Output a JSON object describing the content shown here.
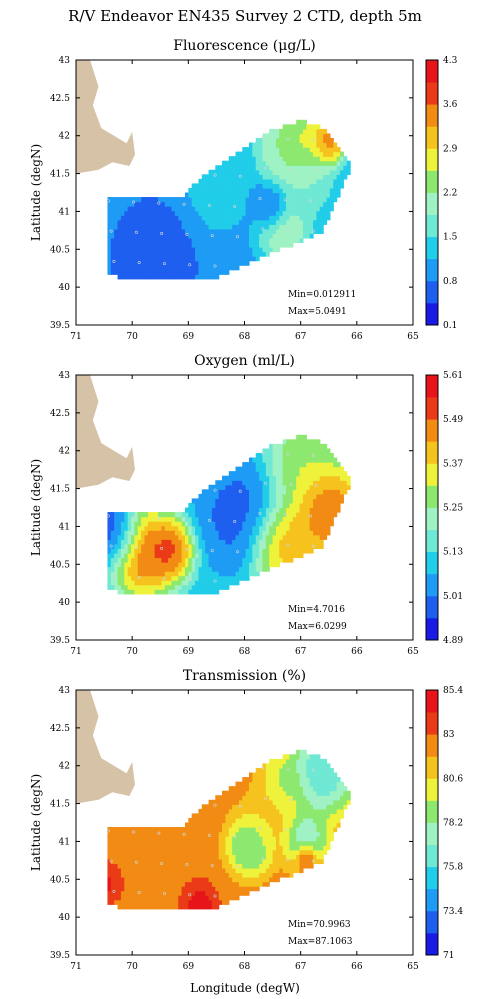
{
  "figure_title": "R/V Endeavor EN435 Survey 2 CTD, depth 5m",
  "xlabel": "Longitude (degW)",
  "ylabel": "Latitude (degN)",
  "colors": {
    "land": "#d6c2a6",
    "colormap": [
      "#1a1ae6",
      "#1f5ff0",
      "#1e9cf5",
      "#21cde8",
      "#6fe8d4",
      "#9ff2c4",
      "#8ce86e",
      "#eef23a",
      "#f6c21e",
      "#f28b14",
      "#ea3a17",
      "#e6151a"
    ]
  },
  "chart_data": [
    {
      "type": "heatmap",
      "title": "Fluorescence (μg/L)",
      "xlim": [
        71,
        65
      ],
      "ylim": [
        39.5,
        43
      ],
      "xticks": [
        "71",
        "70",
        "69",
        "68",
        "67",
        "66",
        "65"
      ],
      "yticks": [
        "39.5",
        "40",
        "40.5",
        "41",
        "41.5",
        "42",
        "42.5",
        "43"
      ],
      "xlabel": "",
      "ylabel": "Latitude (degN)",
      "colorbar_ticks": [
        "4.3",
        "3.6",
        "2.9",
        "2.2",
        "1.5",
        "0.8",
        "0.1"
      ],
      "colorbar_range": [
        0.1,
        4.3
      ],
      "stats": [
        "Min=0.012911",
        "Max=5.0491"
      ],
      "grid": false,
      "features": [
        {
          "lon": 66.5,
          "lat": 41.95,
          "r": 0.25,
          "value": 4.3
        },
        {
          "lon": 67.0,
          "lat": 41.9,
          "r": 0.45,
          "value": 3.2
        },
        {
          "lon": 67.4,
          "lat": 41.8,
          "r": 0.35,
          "value": 2.2
        },
        {
          "lon": 66.9,
          "lat": 41.35,
          "r": 0.4,
          "value": 1.9
        },
        {
          "lon": 67.3,
          "lat": 40.75,
          "r": 0.35,
          "value": 2.6
        },
        {
          "lon": 68.5,
          "lat": 41.3,
          "r": 0.5,
          "value": 1.4
        },
        {
          "lon": 67.5,
          "lat": 41.05,
          "r": 0.25,
          "value": 0.3
        },
        {
          "lon": 69.6,
          "lat": 40.4,
          "r": 0.55,
          "value": 0.4
        }
      ],
      "base_value": 0.95
    },
    {
      "type": "heatmap",
      "title": "Oxygen (ml/L)",
      "xlim": [
        71,
        65
      ],
      "ylim": [
        39.5,
        43
      ],
      "xticks": [
        "71",
        "70",
        "69",
        "68",
        "67",
        "66",
        "65"
      ],
      "yticks": [
        "39.5",
        "40",
        "40.5",
        "41",
        "41.5",
        "42",
        "42.5",
        "43"
      ],
      "xlabel": "",
      "ylabel": "Latitude (degN)",
      "colorbar_ticks": [
        "5.61",
        "5.49",
        "5.37",
        "5.25",
        "5.13",
        "5.01",
        "4.89"
      ],
      "colorbar_range": [
        4.89,
        5.61
      ],
      "stats": [
        "Min=4.7016",
        "Max=6.0299"
      ],
      "grid": false,
      "features": [
        {
          "lon": 69.8,
          "lat": 40.65,
          "r": 0.45,
          "value": 5.61
        },
        {
          "lon": 69.3,
          "lat": 40.7,
          "r": 0.3,
          "value": 5.6
        },
        {
          "lon": 66.5,
          "lat": 41.2,
          "r": 0.5,
          "value": 5.61
        },
        {
          "lon": 67.3,
          "lat": 40.75,
          "r": 0.45,
          "value": 5.5
        },
        {
          "lon": 67.0,
          "lat": 41.85,
          "r": 0.45,
          "value": 5.35
        },
        {
          "lon": 68.1,
          "lat": 41.15,
          "r": 0.55,
          "value": 4.95
        },
        {
          "lon": 70.3,
          "lat": 40.9,
          "r": 0.35,
          "value": 4.89
        }
      ],
      "base_value": 5.1
    },
    {
      "type": "heatmap",
      "title": "Transmission (%)",
      "xlim": [
        71,
        65
      ],
      "ylim": [
        39.5,
        43
      ],
      "xticks": [
        "71",
        "70",
        "69",
        "68",
        "67",
        "66",
        "65"
      ],
      "yticks": [
        "39.5",
        "40",
        "40.5",
        "41",
        "41.5",
        "42",
        "42.5",
        "43"
      ],
      "xlabel": "Longitude (degW)",
      "ylabel": "Latitude (degN)",
      "colorbar_ticks": [
        "85.4",
        "83",
        "80.6",
        "78.2",
        "75.8",
        "73.4",
        "71"
      ],
      "colorbar_range": [
        71,
        85.4
      ],
      "stats": [
        "Min=70.9963",
        "Max=87.1063"
      ],
      "grid": false,
      "features": [
        {
          "lon": 66.6,
          "lat": 41.95,
          "r": 0.45,
          "value": 74.0
        },
        {
          "lon": 67.3,
          "lat": 41.8,
          "r": 0.3,
          "value": 78.5
        },
        {
          "lon": 67.6,
          "lat": 41.3,
          "r": 0.35,
          "value": 80.6
        },
        {
          "lon": 67.9,
          "lat": 40.95,
          "r": 0.3,
          "value": 76.5
        },
        {
          "lon": 66.9,
          "lat": 41.05,
          "r": 0.3,
          "value": 76.0
        },
        {
          "lon": 66.9,
          "lat": 40.8,
          "r": 0.15,
          "value": 85.4
        },
        {
          "lon": 70.45,
          "lat": 40.45,
          "r": 0.2,
          "value": 85.0
        },
        {
          "lon": 68.8,
          "lat": 40.15,
          "r": 0.25,
          "value": 85.4
        }
      ],
      "base_value": 82.3
    }
  ]
}
